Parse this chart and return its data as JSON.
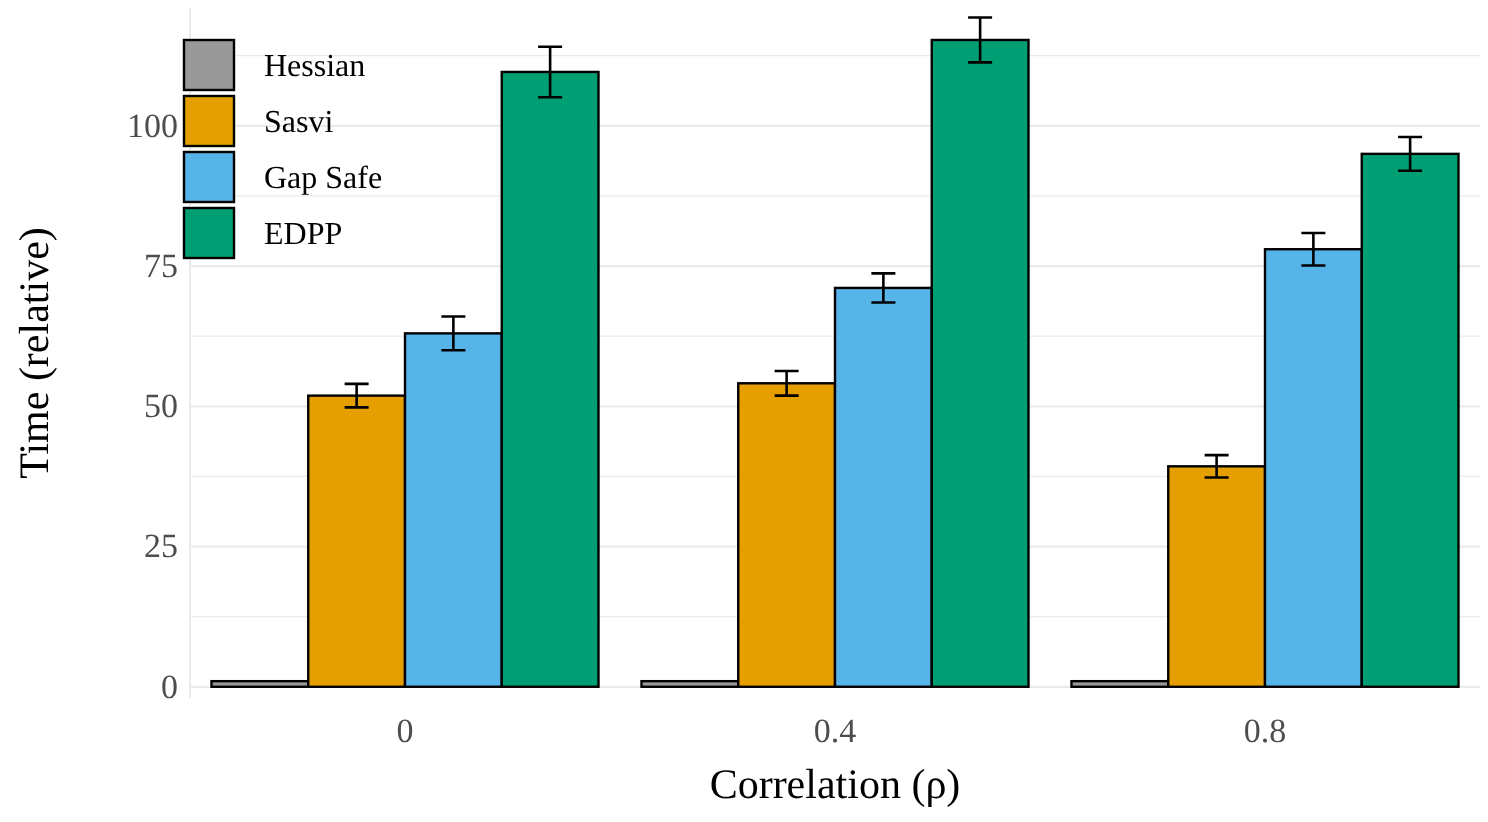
{
  "chart_data": {
    "type": "bar",
    "xlabel": "Correlation (ρ)",
    "ylabel": "Time (relative)",
    "categories": [
      "0",
      "0.4",
      "0.8"
    ],
    "series": [
      {
        "name": "Hessian",
        "color": "#999999",
        "values": [
          1,
          1,
          1
        ]
      },
      {
        "name": "Sasvi",
        "color": "#e69f00",
        "values": [
          51.9,
          54.1,
          39.3
        ],
        "errors": [
          2.1,
          2.2,
          2
        ]
      },
      {
        "name": "Gap Safe",
        "color": "#56b4e9",
        "values": [
          63,
          71.1,
          78
        ],
        "errors": [
          3,
          2.6,
          2.9
        ]
      },
      {
        "name": "EDPP",
        "color": "#009e73",
        "values": [
          109.6,
          115.3,
          95
        ],
        "errors": [
          4.5,
          4,
          3
        ]
      }
    ],
    "ylim": [
      -2,
      121
    ],
    "yticks": [
      0,
      {
        "value": 12.5,
        "label": null
      },
      25,
      {
        "value": 37.5,
        "label": null
      },
      50,
      {
        "value": 62.5,
        "label": null
      },
      75,
      {
        "value": 87.5,
        "label": null
      },
      100,
      {
        "value": 112.5,
        "label": null
      }
    ],
    "grid": true,
    "legend": "top left"
  }
}
